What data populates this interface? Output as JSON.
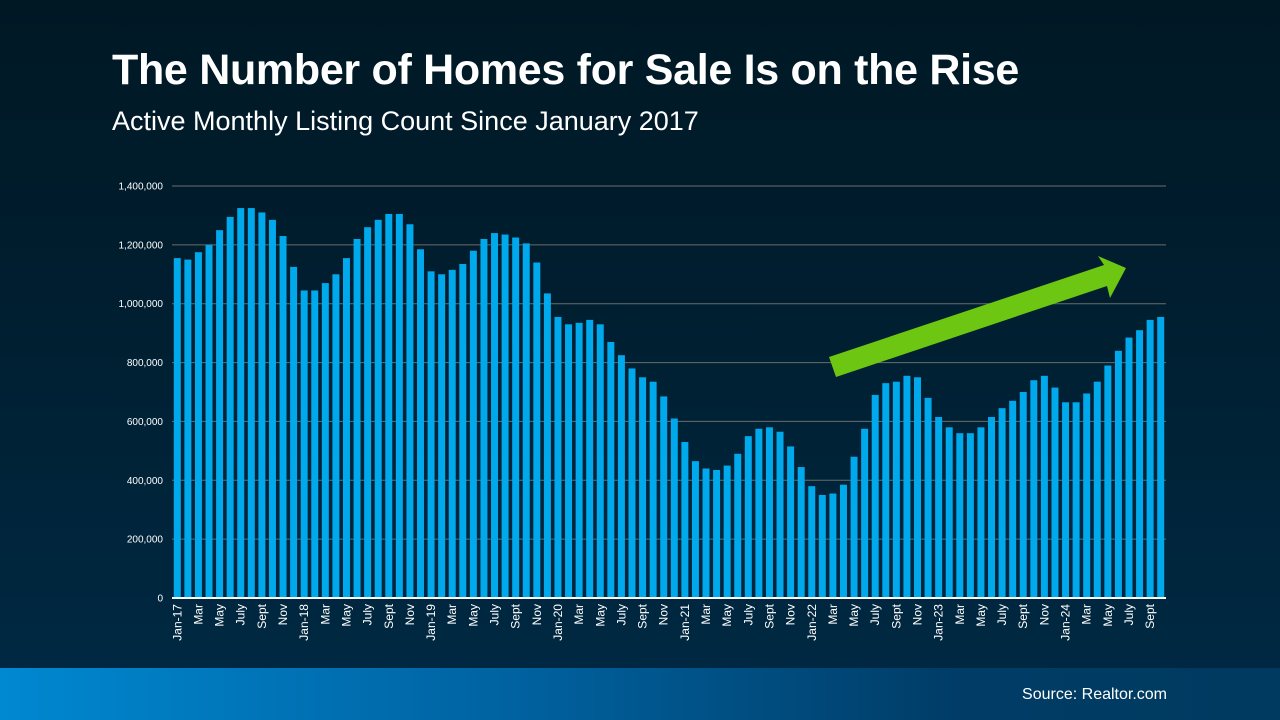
{
  "header": {
    "title": "The Number of Homes for Sale Is on the Rise",
    "subtitle": "Active Monthly Listing Count Since January 2017"
  },
  "footer": {
    "source": "Source: Realtor.com"
  },
  "colors": {
    "bar": "#00a9ec",
    "arrow": "#6cc612",
    "gridline": "#6b6b6b",
    "background": "#001f31"
  },
  "annotation": {
    "type": "upward-trend-arrow",
    "color": "#6cc612"
  },
  "chart_data": {
    "type": "bar",
    "title": "The Number of Homes for Sale Is on the Rise",
    "subtitle": "Active Monthly Listing Count Since January 2017",
    "xlabel": "",
    "ylabel": "",
    "ylim": [
      0,
      1400000
    ],
    "yticks": [
      0,
      200000,
      400000,
      600000,
      800000,
      1000000,
      1200000,
      1400000
    ],
    "ytick_labels": [
      "0",
      "200,000",
      "400,000",
      "600,000",
      "800,000",
      "1,000,000",
      "1,200,000",
      "1,400,000"
    ],
    "grid": true,
    "legend": "none",
    "categories": [
      "Jan-17",
      "",
      "Mar",
      "",
      "May",
      "",
      "July",
      "",
      "Sept",
      "",
      "Nov",
      "",
      "Jan-18",
      "",
      "Mar",
      "",
      "May",
      "",
      "July",
      "",
      "Sept",
      "",
      "Nov",
      "",
      "Jan-19",
      "",
      "Mar",
      "",
      "May",
      "",
      "July",
      "",
      "Sept",
      "",
      "Nov",
      "",
      "Jan-20",
      "",
      "Mar",
      "",
      "May",
      "",
      "July",
      "",
      "Sept",
      "",
      "Nov",
      "",
      "Jan-21",
      "",
      "Mar",
      "",
      "May",
      "",
      "July",
      "",
      "Sept",
      "",
      "Nov",
      "",
      "Jan-22",
      "",
      "Mar",
      "",
      "May",
      "",
      "July",
      "",
      "Sept",
      "",
      "Nov",
      "",
      "Jan-23",
      "",
      "Mar",
      "",
      "May",
      "",
      "July",
      "",
      "Sept",
      "",
      "Nov",
      "",
      "Jan-24",
      "",
      "Mar",
      "",
      "May",
      "",
      "July",
      "",
      "Sept",
      ""
    ],
    "values": [
      1155000,
      1150000,
      1175000,
      1200000,
      1250000,
      1295000,
      1325000,
      1325000,
      1310000,
      1285000,
      1230000,
      1125000,
      1045000,
      1045000,
      1070000,
      1100000,
      1155000,
      1220000,
      1260000,
      1285000,
      1305000,
      1305000,
      1270000,
      1185000,
      1110000,
      1100000,
      1115000,
      1135000,
      1180000,
      1220000,
      1240000,
      1235000,
      1225000,
      1205000,
      1140000,
      1035000,
      955000,
      930000,
      935000,
      945000,
      930000,
      870000,
      825000,
      780000,
      750000,
      735000,
      685000,
      610000,
      530000,
      465000,
      440000,
      435000,
      450000,
      490000,
      550000,
      575000,
      580000,
      565000,
      515000,
      445000,
      380000,
      350000,
      355000,
      385000,
      480000,
      575000,
      690000,
      730000,
      735000,
      755000,
      750000,
      680000,
      615000,
      580000,
      560000,
      560000,
      580000,
      615000,
      645000,
      670000,
      700000,
      740000,
      755000,
      715000,
      665000,
      665000,
      695000,
      735000,
      790000,
      840000,
      885000,
      910000,
      945000,
      955000
    ]
  }
}
